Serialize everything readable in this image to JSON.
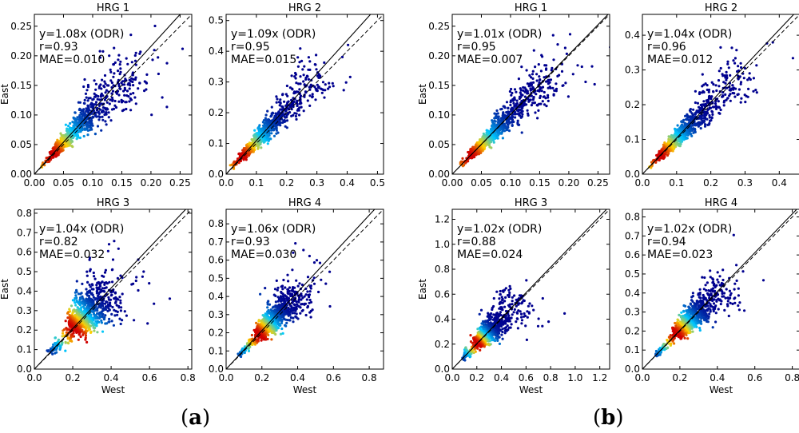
{
  "captions": {
    "a_open": "(",
    "a_letter": "a",
    "a_close": ")",
    "b_open": "(",
    "b_letter": "b",
    "b_close": ")"
  },
  "colors": {
    "low": "#00008f",
    "mid": "#00c8ff",
    "high": "#ffd000",
    "peak": "#d00000",
    "axis": "#000000"
  },
  "chart_data": [
    {
      "id": "a1",
      "type": "scatter",
      "title": "HRG 1",
      "xlabel": "",
      "ylabel": "East",
      "xlim": [
        0,
        0.27
      ],
      "ylim": [
        0,
        0.27
      ],
      "xticks": [
        "0.00",
        "0.05",
        "0.10",
        "0.15",
        "0.20",
        "0.25"
      ],
      "yticks": [
        "0.00",
        "0.05",
        "0.10",
        "0.15",
        "0.20",
        "0.25"
      ],
      "fit_slope": 1.08,
      "fit_label": "y=1.08x (ODR)",
      "r_label": "r=0.93",
      "mae_label": "MAE=0.010",
      "cloud": {
        "center": 0.03,
        "spread": 0.045,
        "max": 0.24,
        "noise": 0.25
      }
    },
    {
      "id": "a2",
      "type": "scatter",
      "title": "HRG 2",
      "xlabel": "",
      "ylabel": "",
      "xlim": [
        0,
        0.52
      ],
      "ylim": [
        0,
        0.52
      ],
      "xticks": [
        "0.0",
        "0.1",
        "0.2",
        "0.3",
        "0.4",
        "0.5"
      ],
      "yticks": [
        "0.0",
        "0.1",
        "0.2",
        "0.3",
        "0.4",
        "0.5"
      ],
      "fit_slope": 1.09,
      "fit_label": "y=1.09x (ODR)",
      "r_label": "r=0.95",
      "mae_label": "MAE=0.015",
      "cloud": {
        "center": 0.05,
        "spread": 0.08,
        "max": 0.45,
        "noise": 0.22
      }
    },
    {
      "id": "a3",
      "type": "scatter",
      "title": "HRG 3",
      "xlabel": "West",
      "ylabel": "East",
      "xlim": [
        0,
        0.82
      ],
      "ylim": [
        0,
        0.82
      ],
      "xticks": [
        "0.0",
        "0.2",
        "0.4",
        "0.6",
        "0.8"
      ],
      "yticks": [
        "0.0",
        "0.1",
        "0.2",
        "0.3",
        "0.4",
        "0.5",
        "0.6",
        "0.7",
        "0.8"
      ],
      "fit_slope": 1.04,
      "fit_label": "y=1.04x (ODR)",
      "r_label": "r=0.82",
      "mae_label": "MAE=0.032",
      "cloud": {
        "center": 0.2,
        "spread": 0.09,
        "max": 0.55,
        "noise": 0.3
      }
    },
    {
      "id": "a4",
      "type": "scatter",
      "title": "HRG 4",
      "xlabel": "West",
      "ylabel": "",
      "xlim": [
        0,
        0.88
      ],
      "ylim": [
        0,
        0.88
      ],
      "xticks": [
        "0.0",
        "0.2",
        "0.4",
        "0.6",
        "0.8"
      ],
      "yticks": [
        "0.0",
        "0.1",
        "0.2",
        "0.3",
        "0.4",
        "0.5",
        "0.6",
        "0.7",
        "0.8"
      ],
      "fit_slope": 1.06,
      "fit_label": "y=1.06x (ODR)",
      "r_label": "r=0.93",
      "mae_label": "MAE=0.030",
      "cloud": {
        "center": 0.18,
        "spread": 0.09,
        "max": 0.55,
        "noise": 0.22
      }
    },
    {
      "id": "b1",
      "type": "scatter",
      "title": "HRG 1",
      "xlabel": "",
      "ylabel": "East",
      "xlim": [
        0,
        0.27
      ],
      "ylim": [
        0,
        0.27
      ],
      "xticks": [
        "0.00",
        "0.05",
        "0.10",
        "0.15",
        "0.20",
        "0.25"
      ],
      "yticks": [
        "0.00",
        "0.05",
        "0.10",
        "0.15",
        "0.20",
        "0.25"
      ],
      "fit_slope": 1.01,
      "fit_label": "y=1.01x (ODR)",
      "r_label": "r=0.95",
      "mae_label": "MAE=0.007",
      "cloud": {
        "center": 0.03,
        "spread": 0.045,
        "max": 0.25,
        "noise": 0.2
      }
    },
    {
      "id": "b2",
      "type": "scatter",
      "title": "HRG 2",
      "xlabel": "",
      "ylabel": "",
      "xlim": [
        0,
        0.46
      ],
      "ylim": [
        0,
        0.46
      ],
      "xticks": [
        "0.0",
        "0.1",
        "0.2",
        "0.3",
        "0.4"
      ],
      "yticks": [
        "0.0",
        "0.1",
        "0.2",
        "0.3",
        "0.4"
      ],
      "fit_slope": 1.04,
      "fit_label": "y=1.04x (ODR)",
      "r_label": "r=0.96",
      "mae_label": "MAE=0.012",
      "cloud": {
        "center": 0.05,
        "spread": 0.07,
        "max": 0.42,
        "noise": 0.2
      }
    },
    {
      "id": "b3",
      "type": "scatter",
      "title": "HRG 3",
      "xlabel": "West",
      "ylabel": "East",
      "xlim": [
        0,
        1.28
      ],
      "ylim": [
        0,
        1.28
      ],
      "xticks": [
        "0.0",
        "0.2",
        "0.4",
        "0.6",
        "0.8",
        "1.0",
        "1.2"
      ],
      "yticks": [
        "0.0",
        "0.2",
        "0.4",
        "0.6",
        "0.8",
        "1.0",
        "1.2"
      ],
      "fit_slope": 1.02,
      "fit_label": "y=1.02x (ODR)",
      "r_label": "r=0.88",
      "mae_label": "MAE=0.024",
      "cloud": {
        "center": 0.2,
        "spread": 0.09,
        "max": 0.8,
        "noise": 0.3
      }
    },
    {
      "id": "b4",
      "type": "scatter",
      "title": "HRG 4",
      "xlabel": "West",
      "ylabel": "",
      "xlim": [
        0,
        0.84
      ],
      "ylim": [
        0,
        0.84
      ],
      "xticks": [
        "0.0",
        "0.2",
        "0.4",
        "0.6",
        "0.8"
      ],
      "yticks": [
        "0.0",
        "0.1",
        "0.2",
        "0.3",
        "0.4",
        "0.5",
        "0.6",
        "0.7",
        "0.8"
      ],
      "fit_slope": 1.02,
      "fit_label": "y=1.02x (ODR)",
      "r_label": "r=0.94",
      "mae_label": "MAE=0.023",
      "cloud": {
        "center": 0.18,
        "spread": 0.09,
        "max": 0.6,
        "noise": 0.2
      }
    }
  ]
}
